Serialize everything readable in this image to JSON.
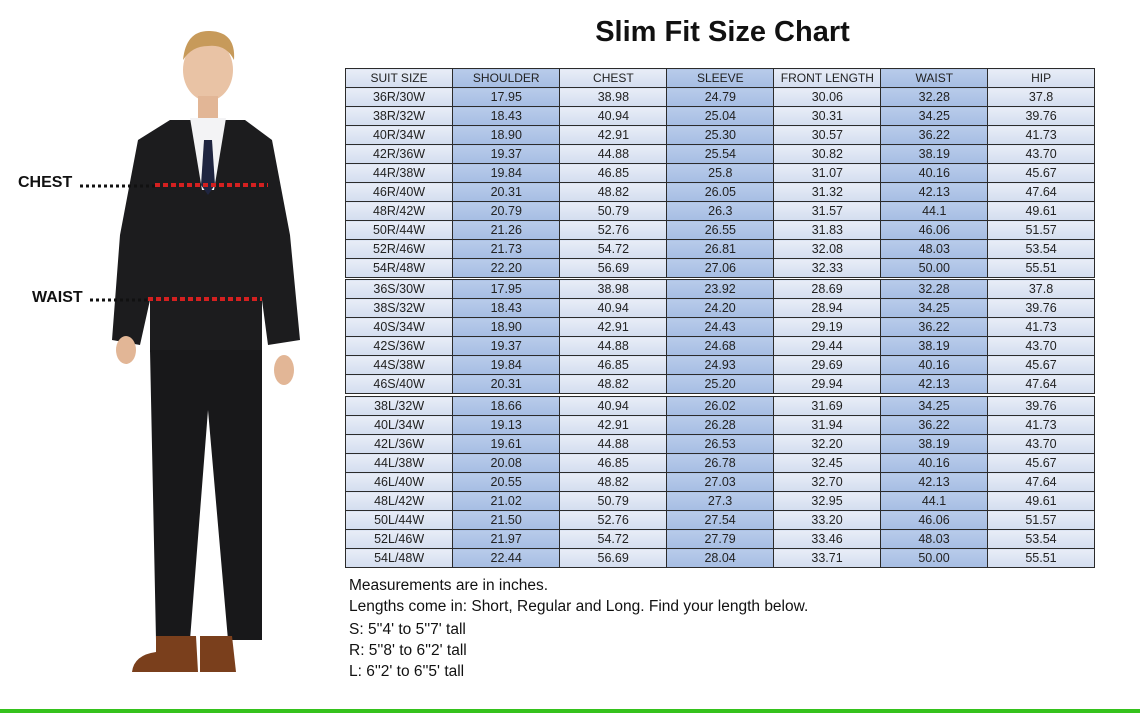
{
  "title": "Slim Fit Size Chart",
  "figure": {
    "chest_label": "CHEST",
    "waist_label": "WAIST",
    "measure_line_color": "#d42020"
  },
  "colors": {
    "light_column": "#dfe6f3",
    "dark_column": "#abc1e5",
    "footer_line": "#35c21c"
  },
  "headers": [
    "SUIT SIZE",
    "SHOULDER",
    "CHEST",
    "SLEEVE",
    "FRONT LENGTH",
    "WAIST",
    "HIP"
  ],
  "regular": [
    [
      "36R/30W",
      "17.95",
      "38.98",
      "24.79",
      "30.06",
      "32.28",
      "37.8"
    ],
    [
      "38R/32W",
      "18.43",
      "40.94",
      "25.04",
      "30.31",
      "34.25",
      "39.76"
    ],
    [
      "40R/34W",
      "18.90",
      "42.91",
      "25.30",
      "30.57",
      "36.22",
      "41.73"
    ],
    [
      "42R/36W",
      "19.37",
      "44.88",
      "25.54",
      "30.82",
      "38.19",
      "43.70"
    ],
    [
      "44R/38W",
      "19.84",
      "46.85",
      "25.8",
      "31.07",
      "40.16",
      "45.67"
    ],
    [
      "46R/40W",
      "20.31",
      "48.82",
      "26.05",
      "31.32",
      "42.13",
      "47.64"
    ],
    [
      "48R/42W",
      "20.79",
      "50.79",
      "26.3",
      "31.57",
      "44.1",
      "49.61"
    ],
    [
      "50R/44W",
      "21.26",
      "52.76",
      "26.55",
      "31.83",
      "46.06",
      "51.57"
    ],
    [
      "52R/46W",
      "21.73",
      "54.72",
      "26.81",
      "32.08",
      "48.03",
      "53.54"
    ],
    [
      "54R/48W",
      "22.20",
      "56.69",
      "27.06",
      "32.33",
      "50.00",
      "55.51"
    ]
  ],
  "short": [
    [
      "36S/30W",
      "17.95",
      "38.98",
      "23.92",
      "28.69",
      "32.28",
      "37.8"
    ],
    [
      "38S/32W",
      "18.43",
      "40.94",
      "24.20",
      "28.94",
      "34.25",
      "39.76"
    ],
    [
      "40S/34W",
      "18.90",
      "42.91",
      "24.43",
      "29.19",
      "36.22",
      "41.73"
    ],
    [
      "42S/36W",
      "19.37",
      "44.88",
      "24.68",
      "29.44",
      "38.19",
      "43.70"
    ],
    [
      "44S/38W",
      "19.84",
      "46.85",
      "24.93",
      "29.69",
      "40.16",
      "45.67"
    ],
    [
      "46S/40W",
      "20.31",
      "48.82",
      "25.20",
      "29.94",
      "42.13",
      "47.64"
    ]
  ],
  "long": [
    [
      "38L/32W",
      "18.66",
      "40.94",
      "26.02",
      "31.69",
      "34.25",
      "39.76"
    ],
    [
      "40L/34W",
      "19.13",
      "42.91",
      "26.28",
      "31.94",
      "36.22",
      "41.73"
    ],
    [
      "42L/36W",
      "19.61",
      "44.88",
      "26.53",
      "32.20",
      "38.19",
      "43.70"
    ],
    [
      "44L/38W",
      "20.08",
      "46.85",
      "26.78",
      "32.45",
      "40.16",
      "45.67"
    ],
    [
      "46L/40W",
      "20.55",
      "48.82",
      "27.03",
      "32.70",
      "42.13",
      "47.64"
    ],
    [
      "48L/42W",
      "21.02",
      "50.79",
      "27.3",
      "32.95",
      "44.1",
      "49.61"
    ],
    [
      "50L/44W",
      "21.50",
      "52.76",
      "27.54",
      "33.20",
      "46.06",
      "51.57"
    ],
    [
      "52L/46W",
      "21.97",
      "54.72",
      "27.79",
      "33.46",
      "48.03",
      "53.54"
    ],
    [
      "54L/48W",
      "22.44",
      "56.69",
      "28.04",
      "33.71",
      "50.00",
      "55.51"
    ]
  ],
  "notes": [
    "Measurements are in inches.",
    "Lengths come in: Short, Regular and Long. Find your length below.",
    "S: 5''4' to 5''7' tall",
    "R: 5''8' to 6''2' tall",
    "L: 6''2' to 6''5' tall"
  ]
}
